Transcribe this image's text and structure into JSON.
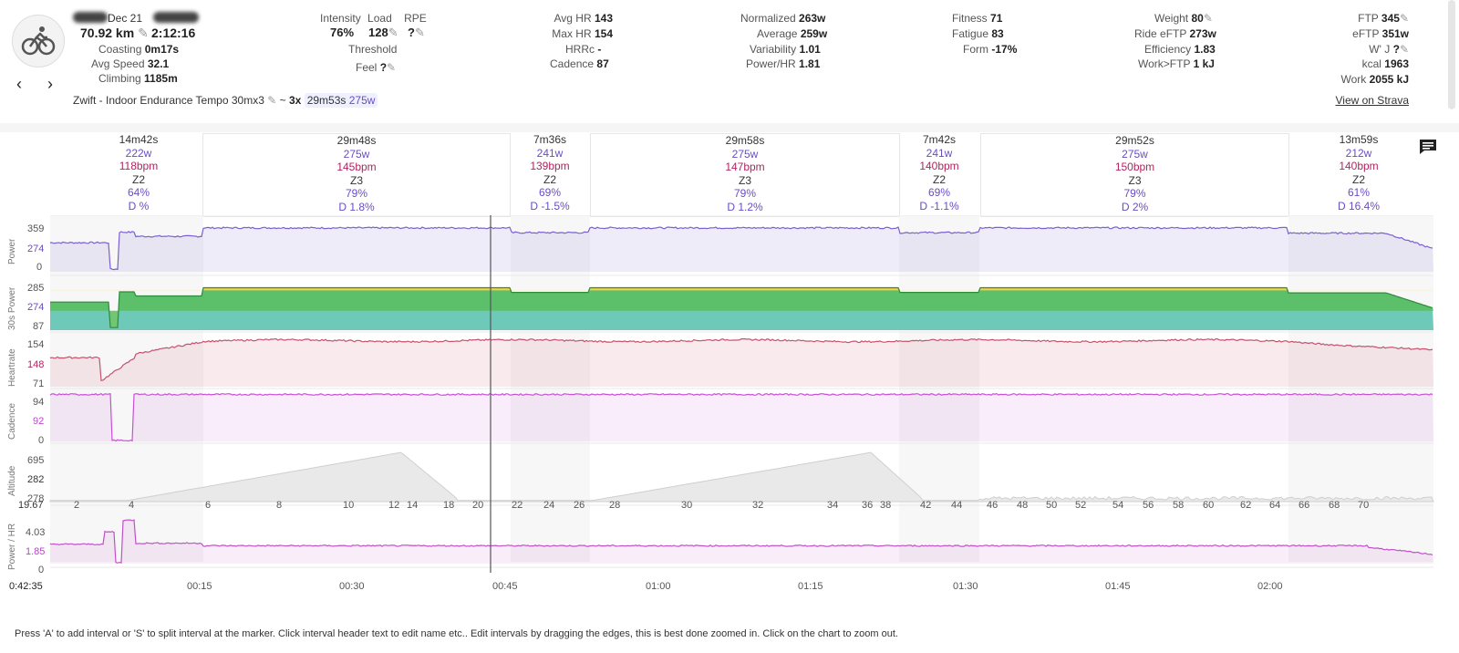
{
  "activity": {
    "date": "Dec 21",
    "distance": "70.92 km",
    "duration": "2:12:16",
    "coasting_label": "Coasting",
    "coasting": "0m17s",
    "avg_speed_label": "Avg Speed",
    "avg_speed": "32.1",
    "climbing_label": "Climbing",
    "climbing": "1185m",
    "title": "Zwift - Indoor Endurance Tempo 30mx3",
    "summary_prefix": "~",
    "summary_count": "3x",
    "summary_interval": "29m53s",
    "summary_power": "275w"
  },
  "stats": {
    "intensity_label": "Intensity",
    "intensity": "76%",
    "load_label": "Load",
    "load": "128",
    "rpe_label": "RPE",
    "rpe": "?",
    "threshold_label": "Threshold",
    "feel_label": "Feel",
    "feel": "?",
    "avg_hr_label": "Avg HR",
    "avg_hr": "143",
    "max_hr_label": "Max HR",
    "max_hr": "154",
    "hrrc_label": "HRRc",
    "hrrc": "-",
    "cadence_label": "Cadence",
    "cadence": "87",
    "normalized_label": "Normalized",
    "normalized": "263w",
    "average_label": "Average",
    "average": "259w",
    "variability_label": "Variability",
    "variability": "1.01",
    "power_hr_label": "Power/HR",
    "power_hr": "1.81",
    "fitness_label": "Fitness",
    "fitness": "71",
    "fatigue_label": "Fatigue",
    "fatigue": "83",
    "form_label": "Form",
    "form": "-17%",
    "weight_label": "Weight",
    "weight": "80",
    "ride_eftp_label": "Ride eFTP",
    "ride_eftp": "273w",
    "efficiency_label": "Efficiency",
    "efficiency": "1.83",
    "work_ftp_label": "Work>FTP",
    "work_ftp": "1 kJ",
    "ftp_label": "FTP",
    "ftp": "345",
    "eftp_label": "eFTP",
    "eftp": "351w",
    "wj_label": "W' J",
    "wj": "?",
    "kcal_label": "kcal",
    "kcal": "1963",
    "work_label": "Work",
    "work": "2055 kJ",
    "strava_link": "View on Strava"
  },
  "intervals": [
    {
      "time": "14m42s",
      "power": "222w",
      "hr": "118bpm",
      "zone": "Z2",
      "pct": "64%",
      "d": "D %"
    },
    {
      "time": "29m48s",
      "power": "275w",
      "hr": "145bpm",
      "zone": "Z3",
      "pct": "79%",
      "d": "D 1.8%"
    },
    {
      "time": "7m36s",
      "power": "241w",
      "hr": "139bpm",
      "zone": "Z2",
      "pct": "69%",
      "d": "D -1.5%"
    },
    {
      "time": "29m58s",
      "power": "275w",
      "hr": "147bpm",
      "zone": "Z3",
      "pct": "79%",
      "d": "D 1.2%"
    },
    {
      "time": "7m42s",
      "power": "241w",
      "hr": "140bpm",
      "zone": "Z2",
      "pct": "69%",
      "d": "D -1.1%"
    },
    {
      "time": "29m52s",
      "power": "275w",
      "hr": "150bpm",
      "zone": "Z3",
      "pct": "79%",
      "d": "D 2%"
    },
    {
      "time": "13m59s",
      "power": "212w",
      "hr": "140bpm",
      "zone": "Z2",
      "pct": "61%",
      "d": "D 16.4%"
    }
  ],
  "charts": {
    "power": {
      "label": "Power",
      "ticks": [
        "359",
        "274",
        "0"
      ],
      "highlight": "274"
    },
    "power30": {
      "label": "30s Power",
      "ticks": [
        "285",
        "274",
        "87"
      ],
      "highlight": "274"
    },
    "heartrate": {
      "label": "Heartrate",
      "ticks": [
        "154",
        "148",
        "71"
      ],
      "highlight": "148"
    },
    "cadence": {
      "label": "Cadence",
      "ticks": [
        "94",
        "92",
        "0"
      ],
      "highlight": "92"
    },
    "altitude": {
      "label": "Altitude",
      "ticks": [
        "695",
        "282",
        "278"
      ],
      "highlight": "282"
    },
    "power_hr": {
      "label": "Power / HR",
      "ticks": [
        "4.03",
        "1.85",
        "0"
      ],
      "highlight": "1.85"
    }
  },
  "distance_start": "19.67",
  "distance_ticks": [
    "2",
    "4",
    "6",
    "8",
    "10",
    "12",
    "14",
    "18",
    "20",
    "22",
    "24",
    "26",
    "28",
    "30",
    "32",
    "34",
    "36",
    "38",
    "42",
    "44",
    "46",
    "48",
    "50",
    "52",
    "54",
    "56",
    "58",
    "60",
    "62",
    "64",
    "66",
    "68",
    "70"
  ],
  "time_start": "0:42:35",
  "time_ticks": [
    "00:15",
    "00:30",
    "00:45",
    "01:00",
    "01:15",
    "01:30",
    "01:45",
    "02:00"
  ],
  "footer": "Press 'A' to add interval or 'S' to split interval at the marker. Click interval header text to edit name etc.. Edit intervals by dragging the edges, this is best done zoomed in. Click on the chart to zoom out.",
  "colors": {
    "power": "#7b5fd0",
    "heartrate": "#c7506e",
    "cadence": "#c74fd6",
    "powerhr": "#c050c8",
    "altitude": "#cfcfcf",
    "zone_yellow": "#f3d04a",
    "zone_green": "#59bd5a",
    "zone_teal": "#6fc9b9"
  }
}
